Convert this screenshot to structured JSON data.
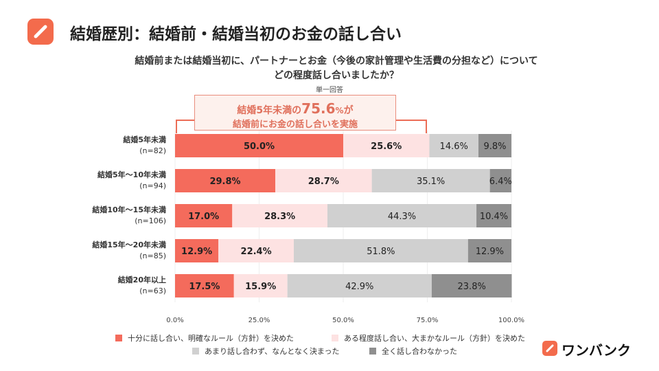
{
  "header": {
    "title": "結婚歴別：結婚前・結婚当初のお金の話し合い",
    "question_line1": "結婚前または結婚当初に、パートナーとお金（今後の家計管理や生活費の分担など）について",
    "question_line2": "どの程度話し合いましたか？",
    "answer_type": "単一回答"
  },
  "callout": {
    "line1_prefix": "結婚5年未満の",
    "line1_value": "75.6",
    "line1_unit": "%",
    "line1_suffix": "が",
    "line2": "結婚前にお金の話し合いを実施"
  },
  "brand": {
    "name": "ワンバンク"
  },
  "colors": {
    "decided": "#f46b5c",
    "somewhat": "#fde2e2",
    "barely": "#d0d0d0",
    "none": "#8f8f8f",
    "accent": "#f36b4c"
  },
  "chart_data": {
    "type": "bar",
    "orientation": "horizontal",
    "stacked": true,
    "categories": [
      {
        "label": "結婚5年未満",
        "n": "(n=82)"
      },
      {
        "label": "結婚5年～10年未満",
        "n": "(n=94)"
      },
      {
        "label": "結婚10年～15年未満",
        "n": "(n=106)"
      },
      {
        "label": "結婚15年～20年未満",
        "n": "(n=85)"
      },
      {
        "label": "結婚20年以上",
        "n": "(n=63)"
      }
    ],
    "series": [
      {
        "name": "十分に話し合い、明確なルール（方針）を決めた",
        "color": "#f46b5c",
        "label_bold": true,
        "values": [
          50.0,
          29.8,
          17.0,
          12.9,
          17.5
        ]
      },
      {
        "name": "ある程度話し合い、大まかなルール（方針）を決めた",
        "color": "#fde2e2",
        "label_bold": true,
        "values": [
          25.6,
          28.7,
          28.3,
          22.4,
          15.9
        ]
      },
      {
        "name": "あまり話し合わず、なんとなく決まった",
        "color": "#d0d0d0",
        "label_bold": false,
        "values": [
          14.6,
          35.1,
          44.3,
          51.8,
          42.9
        ]
      },
      {
        "name": "全く話し合わなかった",
        "color": "#8f8f8f",
        "label_bold": false,
        "values": [
          9.8,
          6.4,
          10.4,
          12.9,
          23.8
        ]
      }
    ],
    "xlim": [
      0,
      100
    ],
    "xticks": [
      "0.0%",
      "25.0%",
      "50.0%",
      "75.0%",
      "100.0%"
    ],
    "legend_position": "bottom"
  }
}
